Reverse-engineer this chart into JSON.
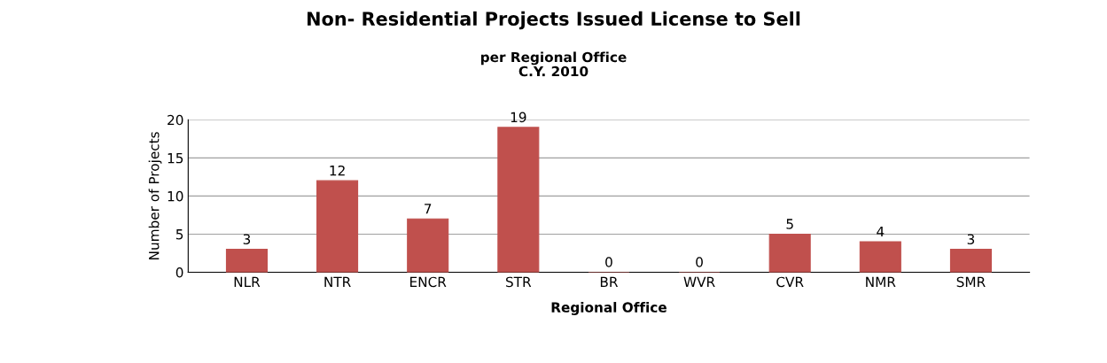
{
  "chart_data": {
    "type": "bar",
    "title": "Non- Residential Projects Issued License to Sell",
    "subtitle": "per Regional Office\nC.Y. 2010",
    "xlabel": "Regional Office",
    "ylabel": "Number of Projects",
    "categories": [
      "NLR",
      "NTR",
      "ENCR",
      "STR",
      "BR",
      "WVR",
      "CVR",
      "NMR",
      "SMR"
    ],
    "values": [
      3,
      12,
      7,
      19,
      0,
      0,
      5,
      4,
      3
    ],
    "color": "#c0504d",
    "ylim": [
      0,
      20
    ],
    "yticks": [
      0,
      5,
      10,
      15,
      20
    ],
    "grid": "y",
    "data_labels": true
  }
}
